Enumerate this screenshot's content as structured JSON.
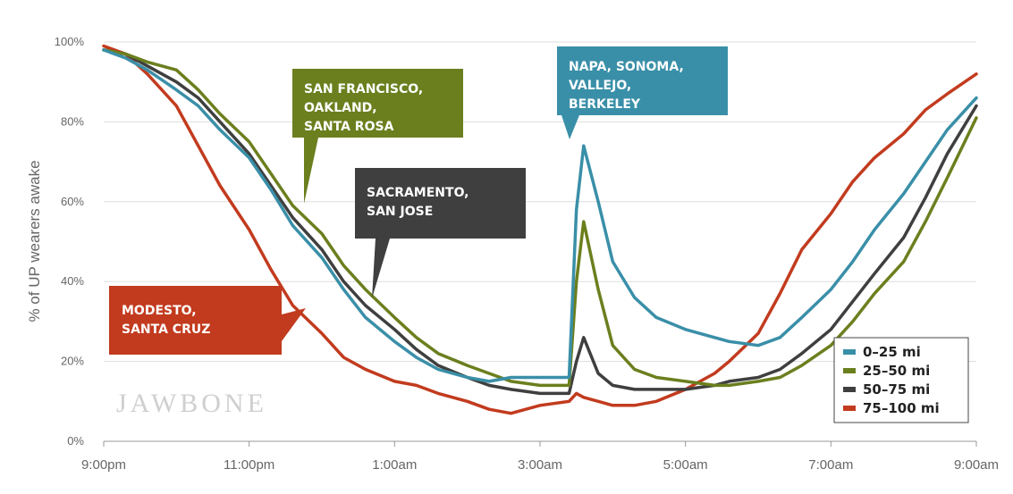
{
  "watermark": "JAWBONE",
  "chart_data": {
    "type": "line",
    "ylabel": "% of UP wearers awake",
    "ylim": [
      0,
      100
    ],
    "yticks": [
      0,
      20,
      40,
      60,
      80,
      100
    ],
    "ytick_labels": [
      "0%",
      "20%",
      "40%",
      "60%",
      "80%",
      "100%"
    ],
    "xlim": [
      0,
      12
    ],
    "xticks": [
      0,
      2,
      4,
      6,
      8,
      10,
      12
    ],
    "xtick_labels": [
      "9:00pm",
      "11:00pm",
      "1:00am",
      "3:00am",
      "5:00am",
      "7:00am",
      "9:00am"
    ],
    "grid": true,
    "legend_position": "bottom-right",
    "series": [
      {
        "name": "0–25 mi",
        "color": "#3a8fa8",
        "x": [
          0,
          0.3,
          0.6,
          1.0,
          1.3,
          1.6,
          2.0,
          2.3,
          2.6,
          3.0,
          3.3,
          3.6,
          4.0,
          4.3,
          4.6,
          5.0,
          5.3,
          5.6,
          6.0,
          6.4,
          6.5,
          6.6,
          6.8,
          7.0,
          7.3,
          7.6,
          8.0,
          8.4,
          8.6,
          9.0,
          9.3,
          9.6,
          10.0,
          10.3,
          10.6,
          11.0,
          11.3,
          11.6,
          12.0
        ],
        "y": [
          98,
          96,
          93,
          88,
          84,
          78,
          71,
          63,
          54,
          46,
          38,
          31,
          25,
          21,
          18,
          16,
          15,
          16,
          16,
          16,
          58,
          74,
          60,
          45,
          36,
          31,
          28,
          26,
          25,
          24,
          26,
          31,
          38,
          45,
          53,
          62,
          70,
          78,
          86
        ]
      },
      {
        "name": "25–50 mi",
        "color": "#6b7f1e",
        "x": [
          0,
          0.3,
          0.6,
          1.0,
          1.3,
          1.6,
          2.0,
          2.3,
          2.6,
          3.0,
          3.3,
          3.6,
          4.0,
          4.3,
          4.6,
          5.0,
          5.3,
          5.6,
          6.0,
          6.4,
          6.5,
          6.6,
          6.8,
          7.0,
          7.3,
          7.6,
          8.0,
          8.4,
          8.6,
          9.0,
          9.3,
          9.6,
          10.0,
          10.3,
          10.6,
          11.0,
          11.3,
          11.6,
          12.0
        ],
        "y": [
          98,
          97,
          95,
          93,
          88,
          82,
          75,
          67,
          59,
          52,
          44,
          38,
          31,
          26,
          22,
          19,
          17,
          15,
          14,
          14,
          40,
          55,
          38,
          24,
          18,
          16,
          15,
          14,
          14,
          15,
          16,
          19,
          24,
          30,
          37,
          45,
          55,
          66,
          81
        ]
      },
      {
        "name": "50–75 mi",
        "color": "#3f3f3f",
        "x": [
          0,
          0.3,
          0.6,
          1.0,
          1.3,
          1.6,
          2.0,
          2.3,
          2.6,
          3.0,
          3.3,
          3.6,
          4.0,
          4.3,
          4.6,
          5.0,
          5.3,
          5.6,
          6.0,
          6.4,
          6.5,
          6.6,
          6.8,
          7.0,
          7.3,
          7.6,
          8.0,
          8.4,
          8.6,
          9.0,
          9.3,
          9.6,
          10.0,
          10.3,
          10.6,
          11.0,
          11.3,
          11.6,
          12.0
        ],
        "y": [
          98,
          97,
          94,
          90,
          86,
          80,
          72,
          64,
          56,
          48,
          40,
          34,
          28,
          23,
          19,
          16,
          14,
          13,
          12,
          12,
          20,
          26,
          17,
          14,
          13,
          13,
          13,
          14,
          15,
          16,
          18,
          22,
          28,
          35,
          42,
          51,
          61,
          72,
          84
        ]
      },
      {
        "name": "75–100 mi",
        "color": "#c23b1e",
        "x": [
          0,
          0.3,
          0.6,
          1.0,
          1.3,
          1.6,
          2.0,
          2.3,
          2.6,
          3.0,
          3.3,
          3.6,
          4.0,
          4.3,
          4.6,
          5.0,
          5.3,
          5.6,
          6.0,
          6.4,
          6.5,
          6.6,
          6.8,
          7.0,
          7.3,
          7.6,
          8.0,
          8.4,
          8.6,
          9.0,
          9.3,
          9.6,
          10.0,
          10.3,
          10.6,
          11.0,
          11.3,
          11.6,
          12.0
        ],
        "y": [
          99,
          97,
          92,
          84,
          74,
          64,
          53,
          43,
          34,
          27,
          21,
          18,
          15,
          14,
          12,
          10,
          8,
          7,
          9,
          10,
          12,
          11,
          10,
          9,
          9,
          10,
          13,
          17,
          20,
          27,
          37,
          48,
          57,
          65,
          71,
          77,
          83,
          87,
          92
        ]
      }
    ],
    "annotations": [
      {
        "lines": [
          "SAN FRANCISCO,",
          "OAKLAND,",
          "SANTA ROSA"
        ],
        "color": "#6b7f1e"
      },
      {
        "lines": [
          "NAPA, SONOMA,",
          "VALLEJO,",
          "BERKELEY"
        ],
        "color": "#3a8fa8"
      },
      {
        "lines": [
          "SACRAMENTO,",
          "SAN JOSE"
        ],
        "color": "#3f3f3f"
      },
      {
        "lines": [
          "MODESTO,",
          "SANTA CRUZ"
        ],
        "color": "#c23b1e"
      }
    ]
  }
}
